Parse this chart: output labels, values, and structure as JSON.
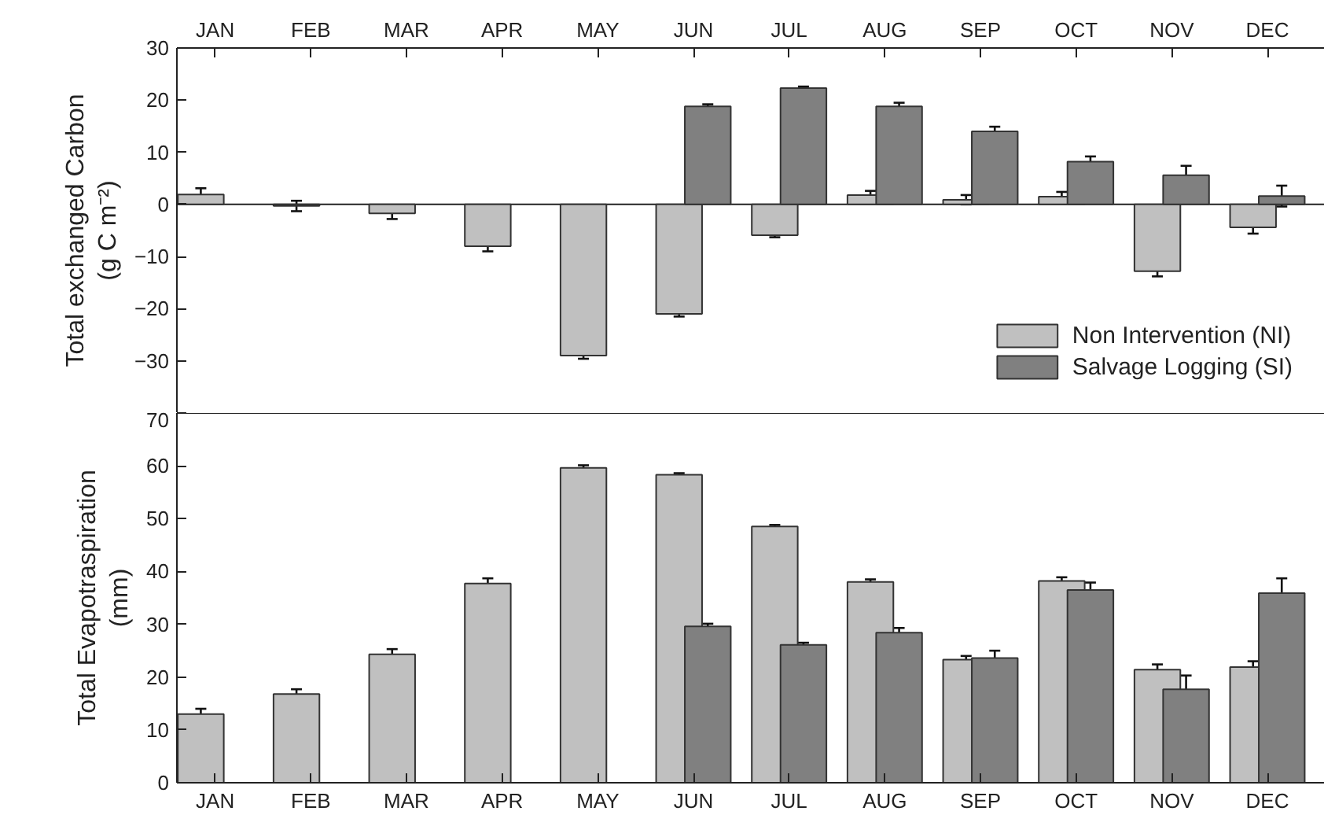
{
  "chart_data": [
    {
      "type": "bar",
      "ylabel": "Total exchanged Carbon\n(g C m⁻²)",
      "categories": [
        "JAN",
        "FEB",
        "MAR",
        "APR",
        "MAY",
        "JUN",
        "JUL",
        "AUG",
        "SEP",
        "OCT",
        "NOV",
        "DEC"
      ],
      "ylim": [
        -40,
        30
      ],
      "yticks": [
        -30,
        -20,
        -10,
        0,
        10,
        20,
        30
      ],
      "legend": "bottom right",
      "grid": false,
      "ref_lines": [
        {
          "axis": "y",
          "value": 0,
          "label": null
        }
      ],
      "series": [
        {
          "name": "Non Intervention (NI)",
          "color": "#c0c0c0",
          "values": [
            1.9,
            -0.3,
            -1.7,
            -8,
            -29,
            -21,
            -5.9,
            1.8,
            0.9,
            1.5,
            -12.8,
            -4.4
          ],
          "errors": [
            1.2,
            1.0,
            1.1,
            1.0,
            0.6,
            0.5,
            0.4,
            0.8,
            0.9,
            0.9,
            1.0,
            1.2
          ]
        },
        {
          "name": "Salvage Logging (SI)",
          "color": "#808080",
          "values": [
            null,
            null,
            null,
            null,
            null,
            18.8,
            22.3,
            18.8,
            14,
            8.2,
            5.6,
            1.6
          ],
          "errors": [
            null,
            null,
            null,
            null,
            null,
            0.4,
            0.3,
            0.7,
            0.9,
            1.0,
            1.8,
            2.0
          ]
        }
      ]
    },
    {
      "type": "bar",
      "ylabel": "Total Evapotraspiration\n(mm)",
      "categories": [
        "JAN",
        "FEB",
        "MAR",
        "APR",
        "MAY",
        "JUN",
        "JUL",
        "AUG",
        "SEP",
        "OCT",
        "NOV",
        "DEC"
      ],
      "ylim": [
        0,
        70
      ],
      "yticks": [
        0,
        10,
        20,
        30,
        40,
        50,
        60,
        70
      ],
      "legend": false,
      "grid": false,
      "series": [
        {
          "color": "#c0c0c0",
          "values": [
            13,
            16.8,
            24.3,
            37.7,
            59.6,
            58.3,
            48.5,
            38,
            23.3,
            38.2,
            21.4,
            21.9
          ],
          "errors": [
            1,
            0.9,
            1,
            1,
            0.5,
            0.3,
            0.3,
            0.5,
            0.7,
            0.7,
            1,
            1.1
          ]
        },
        {
          "color": "#808080",
          "values": [
            null,
            null,
            null,
            null,
            null,
            29.6,
            26.1,
            28.4,
            23.6,
            36.5,
            17.7,
            35.9
          ],
          "errors": [
            null,
            null,
            null,
            null,
            null,
            0.5,
            0.4,
            0.9,
            1.4,
            1.4,
            2.6,
            2.8
          ]
        }
      ]
    }
  ]
}
